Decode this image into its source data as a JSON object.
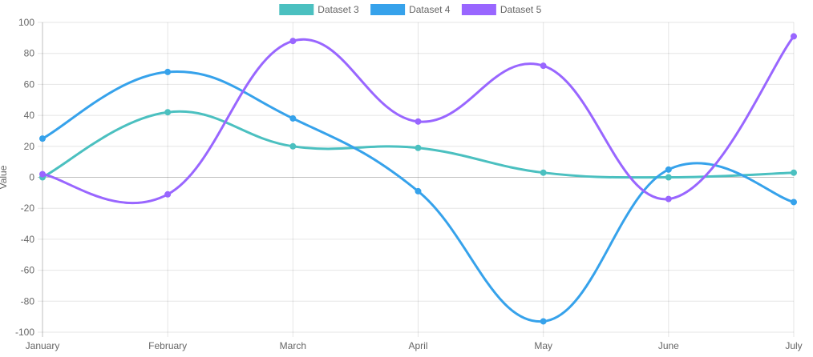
{
  "chart_data": {
    "type": "line",
    "title": "",
    "xlabel": "",
    "ylabel": "Value",
    "categories": [
      "January",
      "February",
      "March",
      "April",
      "May",
      "June",
      "July"
    ],
    "ylim": [
      -100,
      100
    ],
    "yticks": [
      "100",
      "80",
      "60",
      "40",
      "20",
      "0",
      "-20",
      "-40",
      "-60",
      "-80",
      "-100"
    ],
    "grid": true,
    "legend_position": "top",
    "series": [
      {
        "name": "Dataset 3",
        "color": "#4BC0C0",
        "values": [
          0,
          42,
          20,
          19,
          3,
          0,
          3
        ]
      },
      {
        "name": "Dataset 4",
        "color": "#36A2EB",
        "values": [
          25,
          68,
          38,
          -9,
          -93,
          5,
          -16
        ]
      },
      {
        "name": "Dataset 5",
        "color": "#9966FF",
        "values": [
          2,
          -11,
          88,
          36,
          72,
          -14,
          91
        ]
      }
    ]
  }
}
